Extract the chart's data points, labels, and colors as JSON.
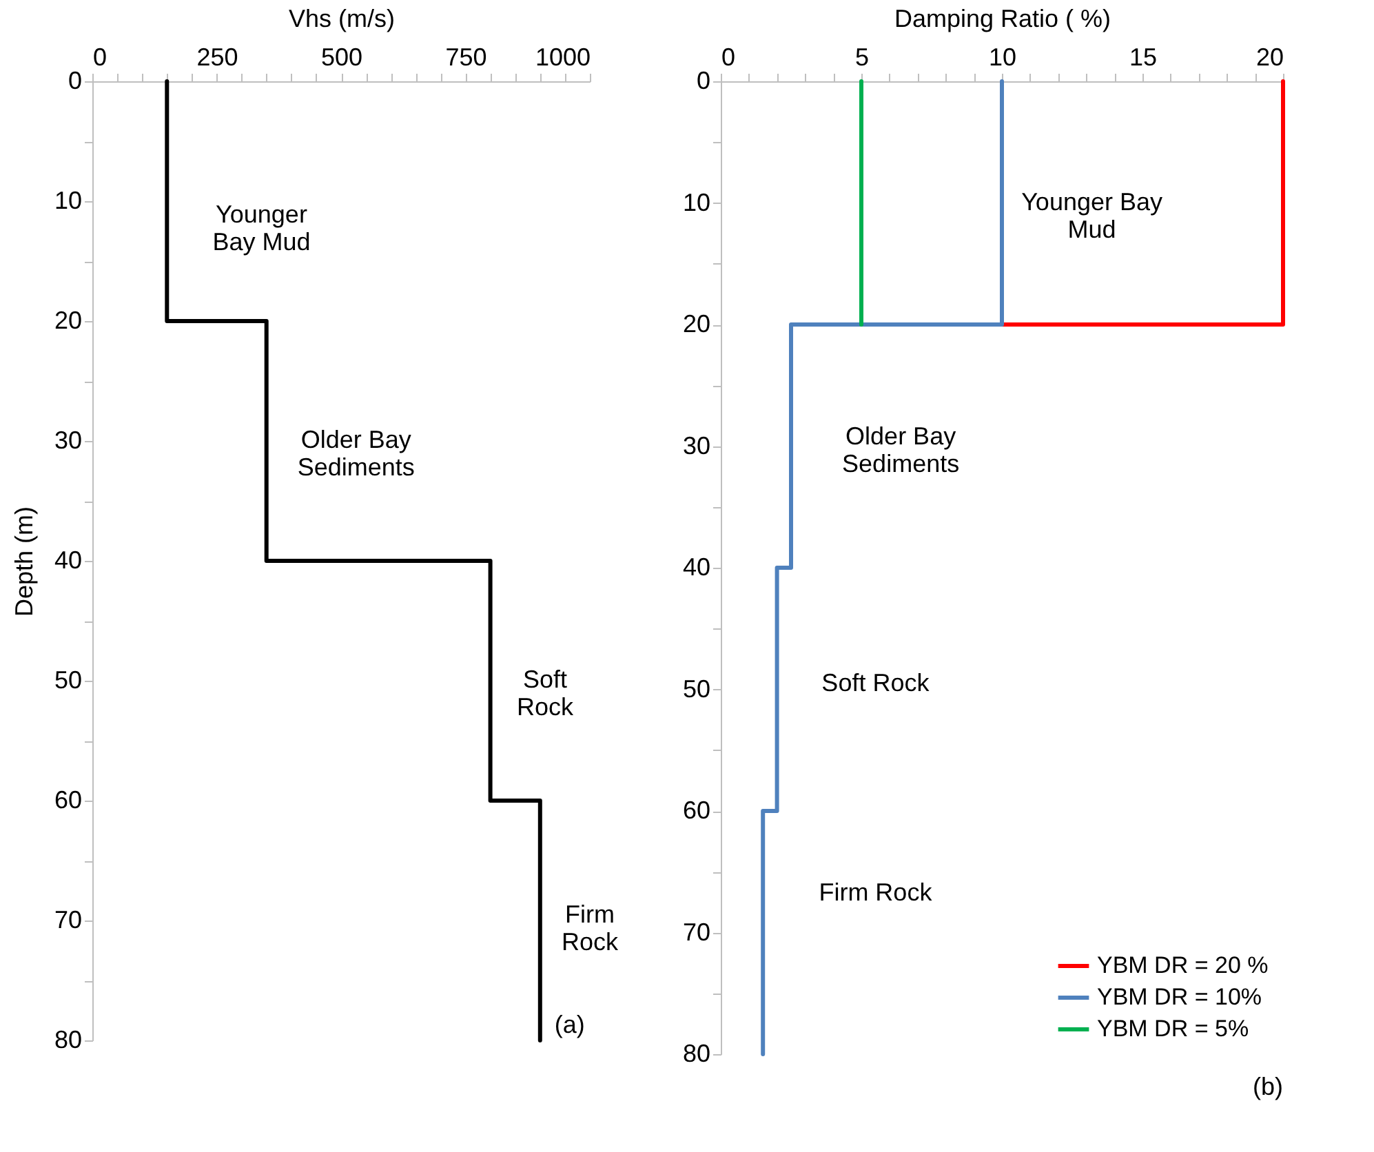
{
  "chart_data": [
    {
      "type": "line",
      "xlabel": "Vhs (m/s)",
      "ylabel": "Depth (m)",
      "xlim": [
        0,
        1000
      ],
      "ylim": [
        80,
        0
      ],
      "xticks": [
        0,
        {
          "value": 50,
          "label": null
        },
        {
          "value": 100,
          "label": null
        },
        {
          "value": 150,
          "label": null
        },
        {
          "value": 200,
          "label": null
        },
        250,
        {
          "value": 300,
          "label": null
        },
        {
          "value": 350,
          "label": null
        },
        {
          "value": 400,
          "label": null
        },
        {
          "value": 450,
          "label": null
        },
        500,
        {
          "value": 550,
          "label": null
        },
        {
          "value": 600,
          "label": null
        },
        {
          "value": 650,
          "label": null
        },
        {
          "value": 700,
          "label": null
        },
        750,
        {
          "value": 800,
          "label": null
        },
        {
          "value": 850,
          "label": null
        },
        {
          "value": 900,
          "label": null
        },
        {
          "value": 950,
          "label": null
        },
        1000
      ],
      "yticks": [
        0,
        {
          "value": 5,
          "label": null
        },
        10,
        {
          "value": 15,
          "label": null
        },
        20,
        {
          "value": 25,
          "label": null
        },
        30,
        {
          "value": 35,
          "label": null
        },
        40,
        {
          "value": 45,
          "label": null
        },
        50,
        {
          "value": 55,
          "label": null
        },
        60,
        {
          "value": 65,
          "label": null
        },
        70,
        {
          "value": 75,
          "label": null
        },
        80
      ],
      "series": [
        {
          "color": "#000000",
          "x": [
            150,
            150,
            350,
            350,
            800,
            800,
            900,
            900
          ],
          "values": [
            0,
            20,
            20,
            40,
            40,
            60,
            60,
            80
          ]
        }
      ],
      "annotations": [
        "Younger\nBay Mud",
        "Older Bay\nSediments",
        "Soft\nRock",
        "Firm\nRock",
        "(a)"
      ]
    },
    {
      "type": "line",
      "xlabel": "Damping Ratio ( %)",
      "xlim": [
        0,
        20
      ],
      "ylim": [
        80,
        0
      ],
      "legend": "bottom right",
      "xticks": [
        0,
        {
          "value": 1,
          "label": null
        },
        {
          "value": 2,
          "label": null
        },
        {
          "value": 3,
          "label": null
        },
        {
          "value": 4,
          "label": null
        },
        5,
        {
          "value": 6,
          "label": null
        },
        {
          "value": 7,
          "label": null
        },
        {
          "value": 8,
          "label": null
        },
        {
          "value": 9,
          "label": null
        },
        10,
        {
          "value": 11,
          "label": null
        },
        {
          "value": 12,
          "label": null
        },
        {
          "value": 13,
          "label": null
        },
        {
          "value": 14,
          "label": null
        },
        15,
        {
          "value": 16,
          "label": null
        },
        {
          "value": 17,
          "label": null
        },
        {
          "value": 18,
          "label": null
        },
        {
          "value": 19,
          "label": null
        },
        20
      ],
      "yticks": [
        0,
        {
          "value": 5,
          "label": null
        },
        10,
        {
          "value": 15,
          "label": null
        },
        20,
        {
          "value": 25,
          "label": null
        },
        30,
        {
          "value": 35,
          "label": null
        },
        40,
        {
          "value": 45,
          "label": null
        },
        50,
        {
          "value": 55,
          "label": null
        },
        60,
        {
          "value": 65,
          "label": null
        },
        70,
        {
          "value": 75,
          "label": null
        },
        80
      ],
      "series": [
        {
          "name": "YBM DR = 20 %",
          "color": "#ff0000",
          "x": [
            20,
            20,
            10
          ],
          "values": [
            0,
            20,
            20
          ]
        },
        {
          "name": "YBM DR = 10%",
          "color": "#4f81bd",
          "x": [
            10,
            10,
            2.5,
            2.5,
            2,
            2,
            1.5,
            1.5
          ],
          "values": [
            0,
            20,
            20,
            40,
            40,
            60,
            60,
            80
          ]
        },
        {
          "name": "YBM DR = 5%",
          "color": "#00b050",
          "x": [
            5,
            5
          ],
          "values": [
            0,
            20
          ]
        }
      ],
      "annotations": [
        "Younger Bay\nMud",
        "Older Bay\nSediments",
        "Soft Rock",
        "Firm Rock",
        "(b)"
      ]
    }
  ]
}
